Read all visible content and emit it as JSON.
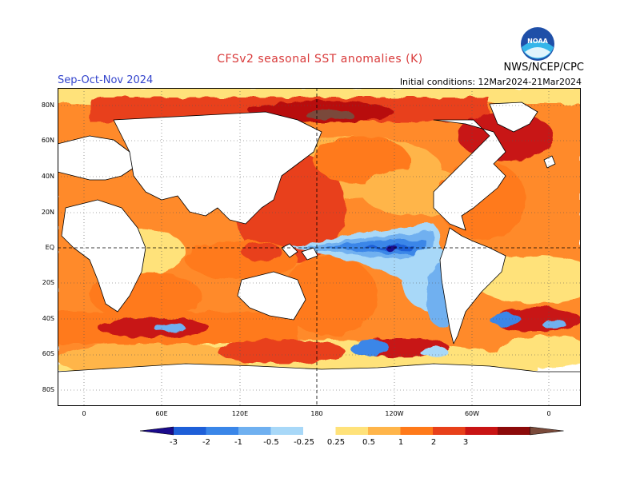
{
  "header": {
    "title": "CFSv2 seasonal SST anomalies (K)",
    "season": "Sep-Oct-Nov 2024",
    "initial_conditions": "Initial conditions: 12Mar2024-21Mar2024",
    "agency": "NWS/NCEP/CPC",
    "logo_text": "NOAA"
  },
  "axes": {
    "lat_labels": [
      "80N",
      "60N",
      "40N",
      "20N",
      "EQ",
      "20S",
      "40S",
      "60S",
      "80S"
    ],
    "lon_labels": [
      "0",
      "60E",
      "120E",
      "180",
      "120W",
      "60W",
      "0"
    ]
  },
  "colorbar": {
    "labels": [
      "-3",
      "-2",
      "-1",
      "-0.5",
      "-0.25",
      "0.25",
      "0.5",
      "1",
      "2",
      "3"
    ],
    "colors": [
      "#1a0a8c",
      "#1e5fd8",
      "#3a86e8",
      "#6fb0f0",
      "#a8d8f8",
      "#ffffff",
      "#ffe27a",
      "#ffb54a",
      "#ff7a1a",
      "#e8401a",
      "#c81414",
      "#8c0a0a",
      "#7a4a3a"
    ]
  },
  "colors": {
    "title": "#d93a3a",
    "season": "#3344cc",
    "land": "#ffffff",
    "coast": "#000000"
  }
}
